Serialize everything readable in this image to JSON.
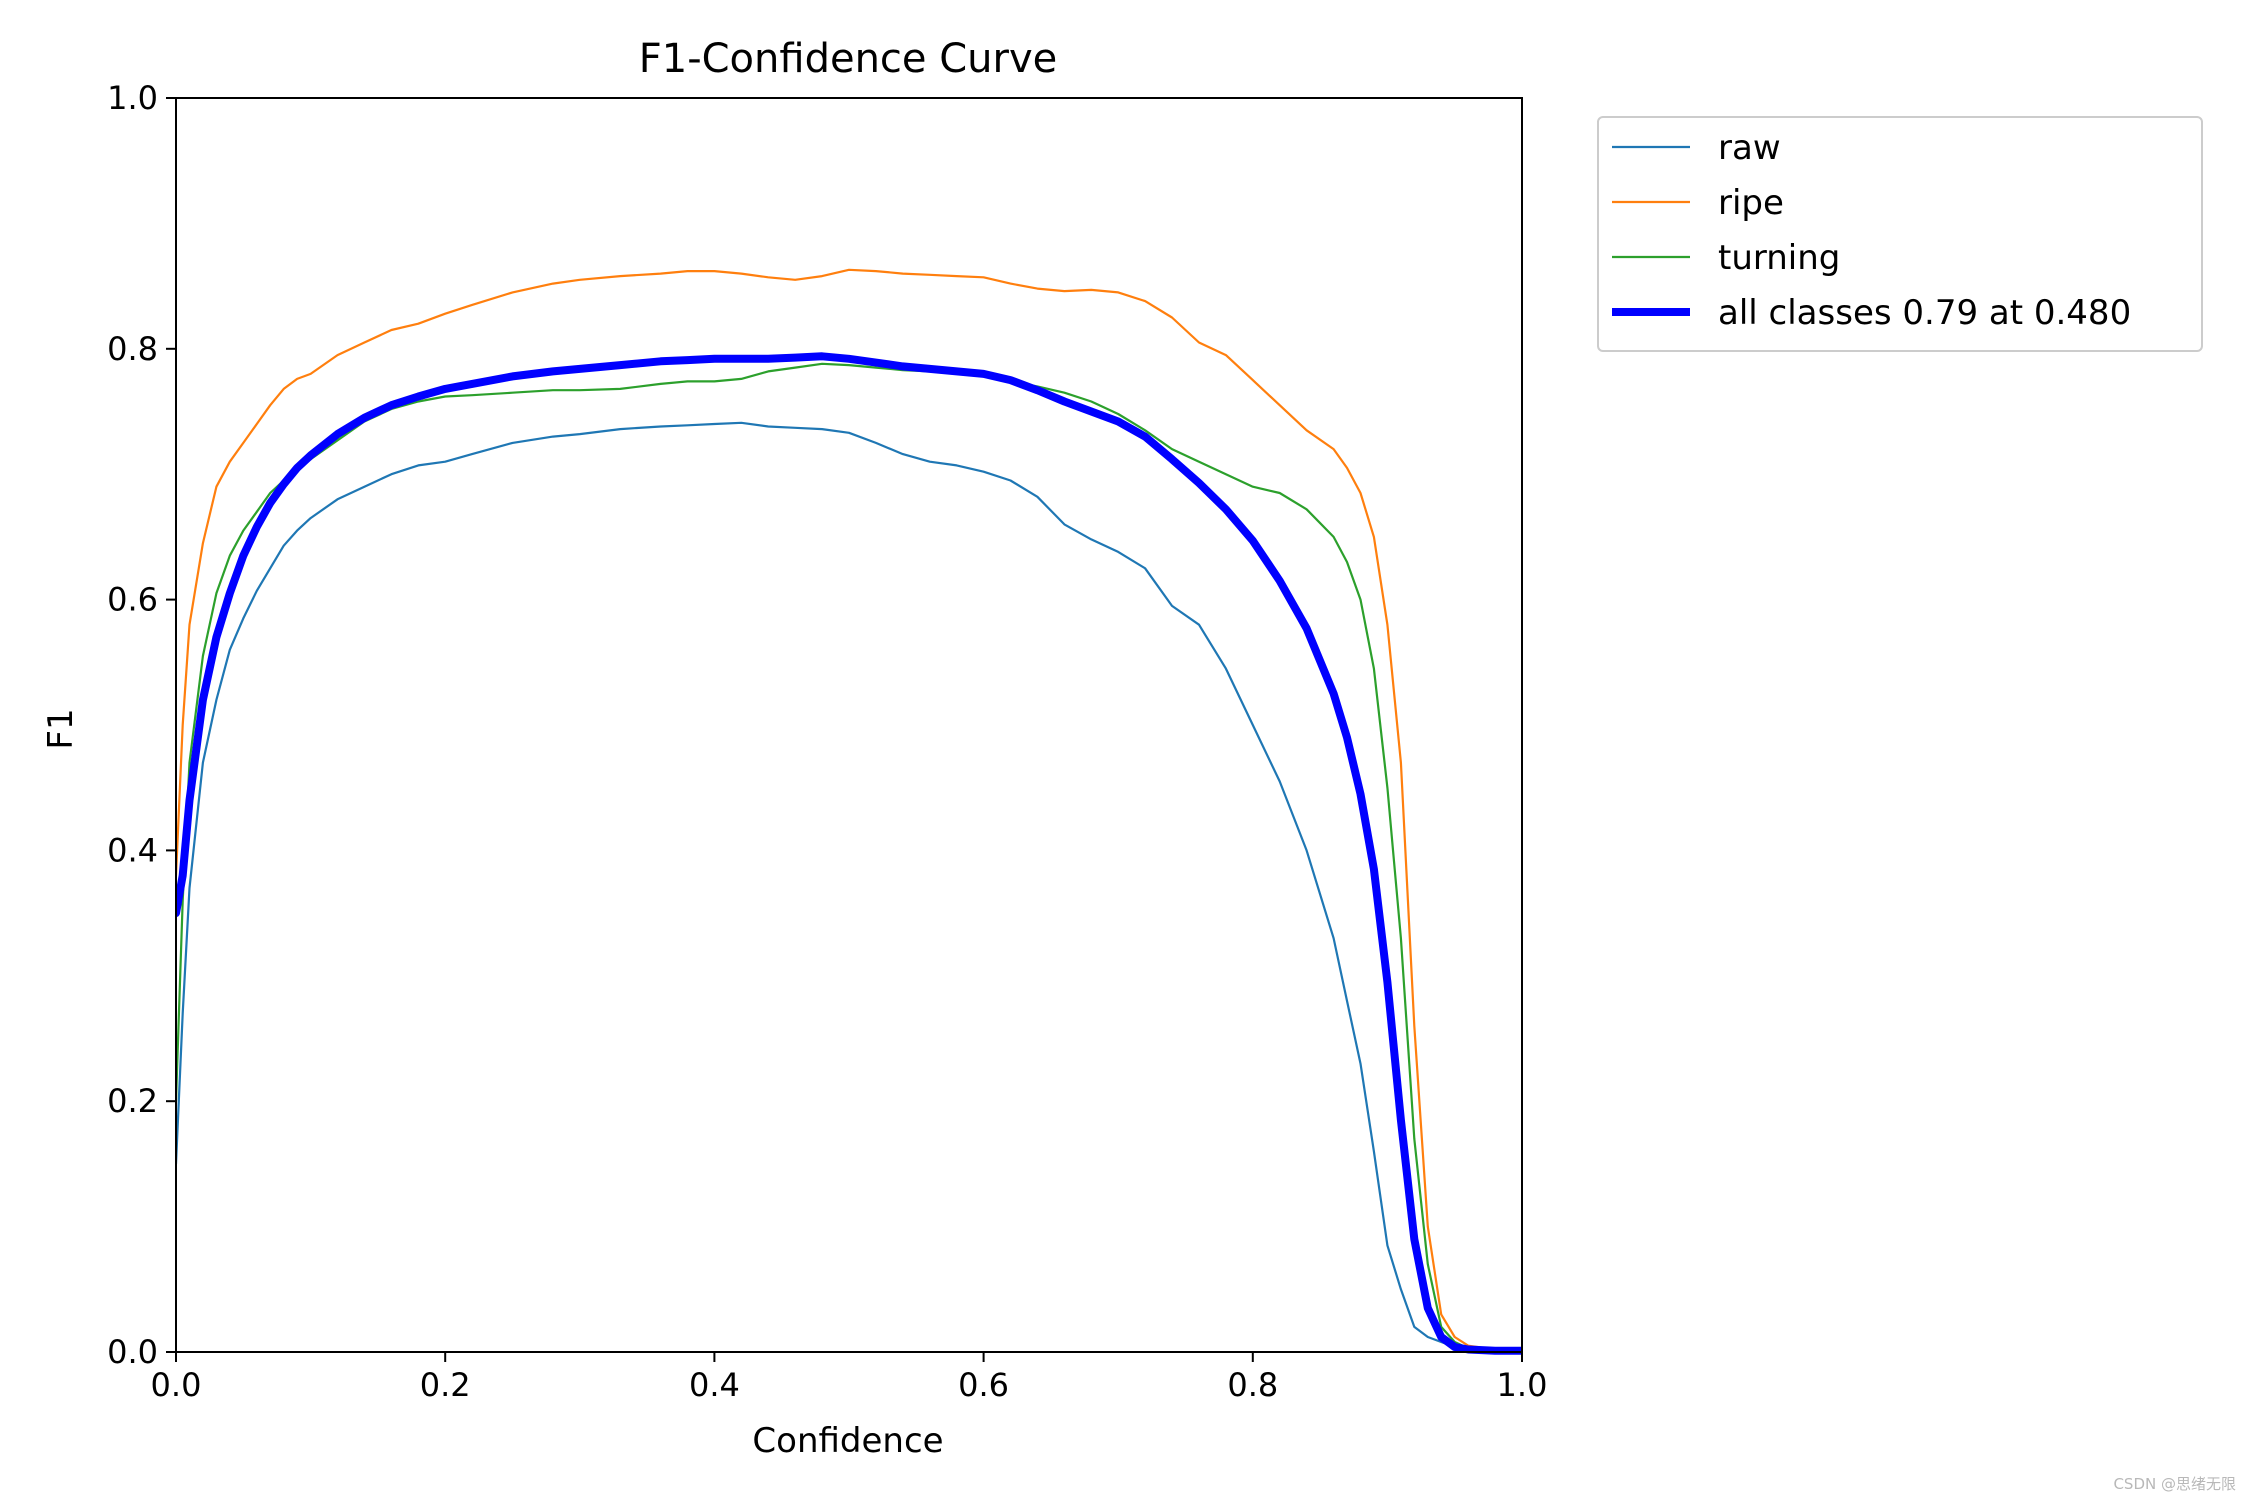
{
  "chart_data": {
    "type": "line",
    "title": "F1-Confidence Curve",
    "xlabel": "Confidence",
    "ylabel": "F1",
    "xlim": [
      0.0,
      1.0
    ],
    "ylim": [
      0.0,
      1.0
    ],
    "xticks": [
      "0.0",
      "0.2",
      "0.4",
      "0.6",
      "0.8",
      "1.0"
    ],
    "yticks": [
      "0.0",
      "0.2",
      "0.4",
      "0.6",
      "0.8",
      "1.0"
    ],
    "grid": false,
    "legend_position": "outside top-right",
    "series": [
      {
        "name": "raw",
        "color": "#1f77b4",
        "x": [
          0.0,
          0.005,
          0.01,
          0.02,
          0.03,
          0.04,
          0.05,
          0.06,
          0.07,
          0.08,
          0.09,
          0.1,
          0.12,
          0.14,
          0.16,
          0.18,
          0.2,
          0.22,
          0.25,
          0.28,
          0.3,
          0.33,
          0.36,
          0.38,
          0.4,
          0.42,
          0.44,
          0.46,
          0.48,
          0.5,
          0.52,
          0.54,
          0.56,
          0.58,
          0.6,
          0.62,
          0.64,
          0.66,
          0.68,
          0.7,
          0.72,
          0.74,
          0.76,
          0.78,
          0.8,
          0.82,
          0.84,
          0.86,
          0.87,
          0.88,
          0.89,
          0.9,
          0.91,
          0.92,
          0.93,
          0.94,
          0.95,
          0.96,
          0.98,
          1.0
        ],
        "y": [
          0.15,
          0.27,
          0.37,
          0.47,
          0.52,
          0.56,
          0.585,
          0.607,
          0.625,
          0.643,
          0.655,
          0.665,
          0.68,
          0.69,
          0.7,
          0.707,
          0.71,
          0.716,
          0.725,
          0.73,
          0.732,
          0.736,
          0.738,
          0.739,
          0.74,
          0.741,
          0.738,
          0.737,
          0.736,
          0.733,
          0.725,
          0.716,
          0.71,
          0.707,
          0.702,
          0.695,
          0.682,
          0.66,
          0.648,
          0.638,
          0.625,
          0.595,
          0.58,
          0.545,
          0.5,
          0.455,
          0.4,
          0.33,
          0.28,
          0.23,
          0.16,
          0.085,
          0.05,
          0.02,
          0.012,
          0.008,
          0.004,
          0.002,
          0.001,
          0.001
        ]
      },
      {
        "name": "ripe",
        "color": "#ff7f0e",
        "x": [
          0.0,
          0.005,
          0.01,
          0.02,
          0.03,
          0.04,
          0.05,
          0.06,
          0.07,
          0.08,
          0.09,
          0.1,
          0.12,
          0.14,
          0.16,
          0.18,
          0.2,
          0.22,
          0.25,
          0.28,
          0.3,
          0.33,
          0.36,
          0.38,
          0.4,
          0.42,
          0.44,
          0.46,
          0.48,
          0.5,
          0.52,
          0.54,
          0.56,
          0.58,
          0.6,
          0.62,
          0.64,
          0.66,
          0.68,
          0.7,
          0.72,
          0.74,
          0.76,
          0.78,
          0.8,
          0.82,
          0.84,
          0.86,
          0.87,
          0.88,
          0.89,
          0.9,
          0.91,
          0.92,
          0.93,
          0.94,
          0.95,
          0.96,
          0.98,
          1.0
        ],
        "y": [
          0.38,
          0.5,
          0.58,
          0.645,
          0.69,
          0.71,
          0.725,
          0.74,
          0.755,
          0.768,
          0.776,
          0.78,
          0.795,
          0.805,
          0.815,
          0.82,
          0.828,
          0.835,
          0.845,
          0.852,
          0.855,
          0.858,
          0.86,
          0.862,
          0.862,
          0.86,
          0.857,
          0.855,
          0.858,
          0.863,
          0.862,
          0.86,
          0.859,
          0.858,
          0.857,
          0.852,
          0.848,
          0.846,
          0.847,
          0.845,
          0.838,
          0.825,
          0.805,
          0.795,
          0.775,
          0.755,
          0.735,
          0.72,
          0.705,
          0.685,
          0.65,
          0.58,
          0.47,
          0.26,
          0.1,
          0.03,
          0.012,
          0.005,
          0.002,
          0.001
        ]
      },
      {
        "name": "turning",
        "color": "#2ca02c",
        "x": [
          0.0,
          0.005,
          0.01,
          0.02,
          0.03,
          0.04,
          0.05,
          0.06,
          0.07,
          0.08,
          0.09,
          0.1,
          0.12,
          0.14,
          0.16,
          0.18,
          0.2,
          0.22,
          0.25,
          0.28,
          0.3,
          0.33,
          0.36,
          0.38,
          0.4,
          0.42,
          0.44,
          0.46,
          0.48,
          0.5,
          0.52,
          0.54,
          0.56,
          0.58,
          0.6,
          0.62,
          0.64,
          0.66,
          0.68,
          0.7,
          0.72,
          0.74,
          0.76,
          0.78,
          0.8,
          0.82,
          0.84,
          0.86,
          0.87,
          0.88,
          0.89,
          0.9,
          0.91,
          0.92,
          0.93,
          0.94,
          0.95,
          0.96,
          0.98,
          1.0
        ],
        "y": [
          0.2,
          0.36,
          0.47,
          0.555,
          0.605,
          0.635,
          0.655,
          0.67,
          0.685,
          0.695,
          0.705,
          0.712,
          0.727,
          0.742,
          0.752,
          0.758,
          0.762,
          0.763,
          0.765,
          0.767,
          0.767,
          0.768,
          0.772,
          0.774,
          0.774,
          0.776,
          0.782,
          0.785,
          0.788,
          0.787,
          0.785,
          0.783,
          0.782,
          0.78,
          0.778,
          0.774,
          0.77,
          0.765,
          0.758,
          0.748,
          0.735,
          0.72,
          0.71,
          0.7,
          0.69,
          0.685,
          0.672,
          0.65,
          0.63,
          0.6,
          0.545,
          0.45,
          0.33,
          0.17,
          0.07,
          0.02,
          0.008,
          0.003,
          0.001,
          0.001
        ]
      },
      {
        "name": "all classes 0.79 at 0.480",
        "color": "#0000ff",
        "x": [
          0.0,
          0.005,
          0.01,
          0.02,
          0.03,
          0.04,
          0.05,
          0.06,
          0.07,
          0.08,
          0.09,
          0.1,
          0.12,
          0.14,
          0.16,
          0.18,
          0.2,
          0.22,
          0.25,
          0.28,
          0.3,
          0.33,
          0.36,
          0.38,
          0.4,
          0.42,
          0.44,
          0.46,
          0.48,
          0.5,
          0.52,
          0.54,
          0.56,
          0.58,
          0.6,
          0.62,
          0.64,
          0.66,
          0.68,
          0.7,
          0.72,
          0.74,
          0.76,
          0.78,
          0.8,
          0.82,
          0.84,
          0.86,
          0.87,
          0.88,
          0.89,
          0.9,
          0.91,
          0.92,
          0.93,
          0.94,
          0.95,
          0.96,
          0.98,
          1.0
        ],
        "y": [
          0.35,
          0.38,
          0.44,
          0.52,
          0.57,
          0.605,
          0.635,
          0.658,
          0.677,
          0.692,
          0.705,
          0.715,
          0.732,
          0.745,
          0.755,
          0.762,
          0.768,
          0.772,
          0.778,
          0.782,
          0.784,
          0.787,
          0.79,
          0.791,
          0.792,
          0.792,
          0.792,
          0.793,
          0.794,
          0.792,
          0.789,
          0.786,
          0.784,
          0.782,
          0.78,
          0.775,
          0.767,
          0.758,
          0.75,
          0.742,
          0.73,
          0.712,
          0.693,
          0.672,
          0.647,
          0.615,
          0.577,
          0.525,
          0.49,
          0.445,
          0.385,
          0.295,
          0.185,
          0.09,
          0.035,
          0.012,
          0.004,
          0.002,
          0.001,
          0.001
        ]
      }
    ]
  },
  "watermark": "CSDN @思绪无限"
}
